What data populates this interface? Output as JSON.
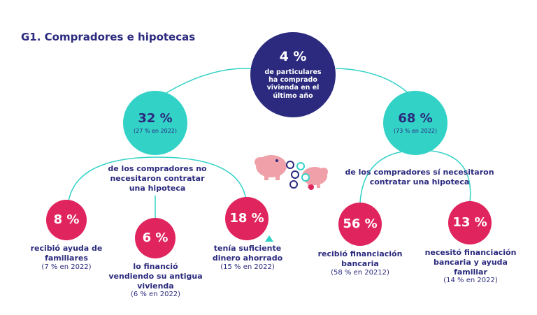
{
  "title": "G1. Compradores e hipotecas",
  "center": {
    "pct": "4 %",
    "text_lines": [
      "de particulares",
      "ha comprado",
      "vivienda en el",
      "último año"
    ]
  },
  "left_branch": {
    "pct": "32 %",
    "prev": "(27 % en 2022)",
    "desc_lines": [
      "de los compradores no",
      "necesitaron contratar",
      "una hipoteca"
    ]
  },
  "right_branch": {
    "pct": "68 %",
    "prev": "(73 % en 2022)",
    "desc_lines": [
      "de los compradores sí necesitaron",
      "contratar una hipoteca"
    ]
  },
  "leaves": [
    {
      "pct": "8 %",
      "desc_lines": [
        "recibió ayuda de",
        "familiares"
      ],
      "prev": "(7 % en 2022)"
    },
    {
      "pct": "6 %",
      "desc_lines": [
        "lo financió",
        "vendiendo su antigua",
        "vivienda"
      ],
      "prev": "(6 % en 2022)"
    },
    {
      "pct": "18 %",
      "desc_lines": [
        "tenía suficiente",
        "dinero ahorrado"
      ],
      "prev": "(15 % en 2022)"
    },
    {
      "pct": "56 %",
      "desc_lines": [
        "recibió financiación",
        "bancaria"
      ],
      "prev": "(58 % en 20212)"
    },
    {
      "pct": "13 %",
      "desc_lines": [
        "necesitó financiación",
        "bancaria y ayuda",
        "familiar"
      ],
      "prev": "(14 % en 2022)"
    }
  ],
  "colors": {
    "navy": "#2b2a7e",
    "teal": "#33d2c7",
    "pink": "#e0245e",
    "piggy": "#f0a0a8"
  },
  "decorations": [
    "piggy-bank-icon",
    "coins-icon",
    "triangle-icon"
  ]
}
